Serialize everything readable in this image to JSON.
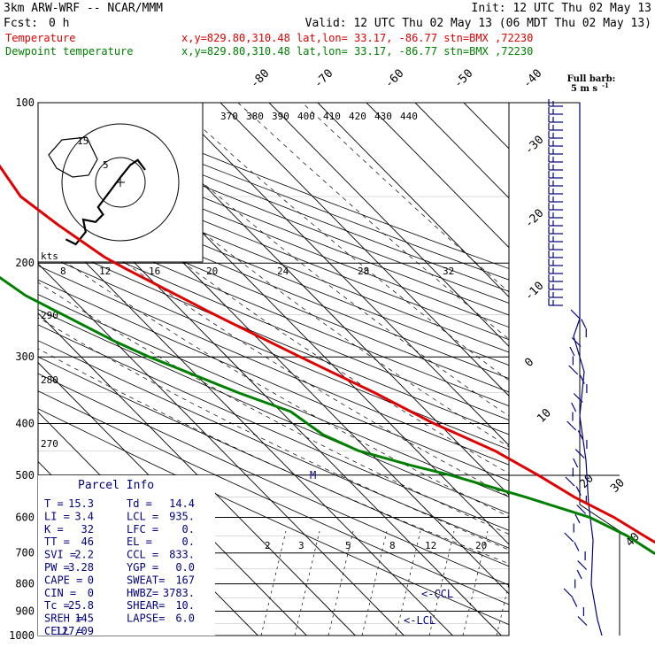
{
  "header": {
    "model": "3km ARW-WRF -- NCAR/MMM",
    "init": "Init: 12 UTC Thu 02 May 13",
    "fcst_label": "Fcst:",
    "fcst_value": "0 h",
    "valid": "Valid: 12 UTC Thu 02 May 13 (06 MDT Thu 02 May 13)",
    "temp_label": "Temperature",
    "dew_label": "Dewpoint temperature",
    "location": "x,y=829.80,310.48   lat,lon= 33.17, -86.77   stn=BMX ,72230"
  },
  "barb_legend": {
    "line1": "Full barb:",
    "line2": "5 m s",
    "sup": "-1"
  },
  "hodograph": {
    "unit_label": "kts",
    "ring_labels": [
      "5",
      "15"
    ]
  },
  "parcel_info": {
    "title": "Parcel Info",
    "rows": [
      [
        "T  =",
        "15.3",
        "Td =",
        "14.4"
      ],
      [
        "LI =",
        "3.4",
        "LCL =",
        "935."
      ],
      [
        "K  =",
        "32",
        "LFC =",
        "0."
      ],
      [
        "TT =",
        "46",
        "EL  =",
        "0."
      ],
      [
        "SVI =",
        "2.2",
        "CCL =",
        "833."
      ],
      [
        "PW =",
        "3.28",
        "YGP =",
        "0.0"
      ],
      [
        "CAPE =",
        "0",
        "SWEAT=",
        "167"
      ],
      [
        "CIN =",
        "0",
        "HWBZ=",
        "3783."
      ],
      [
        "Tc =",
        "25.8",
        "SHEAR=",
        "10."
      ],
      [
        "SREH =",
        "145",
        "LAPSE=",
        "6.0"
      ],
      [
        "CELL =",
        "127/09",
        "",
        ""
      ]
    ]
  },
  "markers": {
    "ccl": "<-CCL",
    "lcl": "<-LCL",
    "m": "M"
  },
  "colors": {
    "temperature": "#e00000",
    "dewpoint": "#008000",
    "wind": "#000080",
    "parcel": "#000080"
  },
  "chart_data": {
    "type": "line",
    "diagram": "skew-T log-P",
    "y_axis": {
      "scale": "log",
      "ticks": [
        100,
        200,
        300,
        400,
        500,
        600,
        700,
        800,
        900,
        1000
      ]
    },
    "isotherm_labels": [
      "-80",
      "-70",
      "-60",
      "-50",
      "-40",
      "-30",
      "-20",
      "-10",
      "0",
      "10",
      "20",
      "30",
      "40"
    ],
    "theta_labels": [
      "370",
      "380",
      "390",
      "400",
      "410",
      "420",
      "430",
      "440"
    ],
    "dry_adiabat_labels": [
      "290",
      "280",
      "270"
    ],
    "mixing_ratio_labels_upper": [
      "8",
      "12",
      "16",
      "20",
      "24",
      "28",
      "32"
    ],
    "mixing_ratio_labels_lower": [
      "2",
      "3",
      "5",
      "8",
      "12",
      "20"
    ],
    "series": [
      {
        "name": "Temperature",
        "color": "#e00000",
        "points": [
          [
            100,
            -57
          ],
          [
            110,
            -58
          ],
          [
            130,
            -58
          ],
          [
            150,
            -60
          ],
          [
            170,
            -58
          ],
          [
            195,
            -55
          ],
          [
            205,
            -53
          ],
          [
            250,
            -44
          ],
          [
            300,
            -35
          ],
          [
            350,
            -27
          ],
          [
            400,
            -21
          ],
          [
            450,
            -14
          ],
          [
            500,
            -10
          ],
          [
            550,
            -7
          ],
          [
            600,
            -3
          ],
          [
            650,
            -0.5
          ],
          [
            700,
            2
          ],
          [
            750,
            5.5
          ],
          [
            800,
            9
          ],
          [
            850,
            12
          ],
          [
            900,
            13.5
          ],
          [
            950,
            14.5
          ],
          [
            990,
            15.3
          ]
        ]
      },
      {
        "name": "Dewpoint temperature",
        "color": "#008000",
        "points": [
          [
            100,
            -83
          ],
          [
            120,
            -88
          ],
          [
            150,
            -85
          ],
          [
            170,
            -82
          ],
          [
            190,
            -84
          ],
          [
            200,
            -82
          ],
          [
            230,
            -79
          ],
          [
            280,
            -70
          ],
          [
            300,
            -66
          ],
          [
            350,
            -55
          ],
          [
            380,
            -48
          ],
          [
            400,
            -47
          ],
          [
            420,
            -46
          ],
          [
            450,
            -42
          ],
          [
            480,
            -34
          ],
          [
            500,
            -28
          ],
          [
            550,
            -17
          ],
          [
            600,
            -8
          ],
          [
            650,
            -4
          ],
          [
            700,
            -2
          ],
          [
            750,
            1
          ],
          [
            800,
            0
          ],
          [
            850,
            8
          ],
          [
            900,
            11.5
          ],
          [
            950,
            13.5
          ],
          [
            990,
            14.4
          ]
        ]
      }
    ],
    "hodograph": {
      "u": [
        -22,
        -18,
        -14,
        -15,
        -10,
        -7,
        -9,
        -6,
        -3,
        0,
        4,
        7,
        10
      ],
      "v": [
        23,
        25,
        20,
        15,
        16,
        13,
        10,
        6,
        2,
        -2,
        -7,
        -9,
        -5
      ]
    }
  }
}
